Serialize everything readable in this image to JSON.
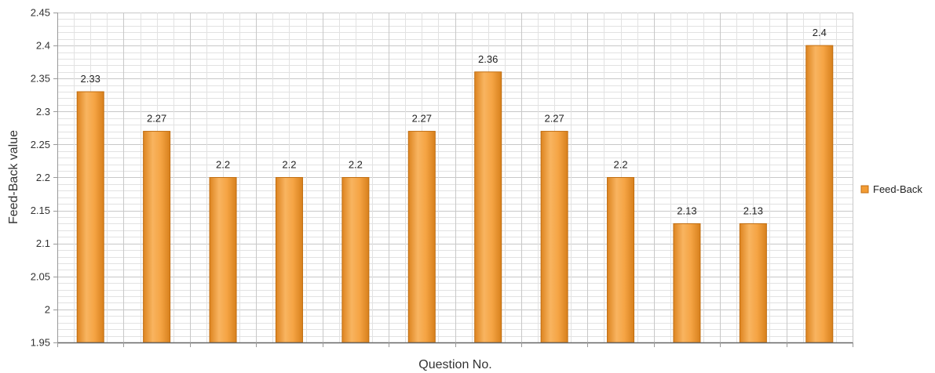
{
  "colors": {
    "bar": "#f39c34",
    "bar_light": "#f7b25e",
    "bar_dark": "#d97d14",
    "bar_outline": "#c06d10",
    "grid_major": "#c8c8c8",
    "grid_minor": "#e2e2e2",
    "axis": "#999999"
  },
  "chart_data": {
    "type": "bar",
    "title": "",
    "xlabel": "Question No.",
    "ylabel": "Feed-Back value",
    "categories": [
      "",
      "",
      "",
      "",
      "",
      "",
      "",
      "",
      "",
      "",
      "",
      ""
    ],
    "series": [
      {
        "name": "Feed-Back",
        "values": [
          2.33,
          2.27,
          2.2,
          2.2,
          2.2,
          2.27,
          2.36,
          2.27,
          2.2,
          2.13,
          2.13,
          2.4
        ],
        "data_labels": [
          "2.33",
          "2.27",
          "2.2",
          "2.2",
          "2.2",
          "2.27",
          "2.36",
          "2.27",
          "2.2",
          "2.13",
          "2.13",
          "2.4"
        ]
      }
    ],
    "ylim": [
      1.95,
      2.45
    ],
    "yticks": [
      "1.95",
      "2",
      "2.05",
      "2.1",
      "2.15",
      "2.2",
      "2.25",
      "2.3",
      "2.35",
      "2.4",
      "2.45"
    ],
    "grid": true,
    "legend_position": "right"
  }
}
